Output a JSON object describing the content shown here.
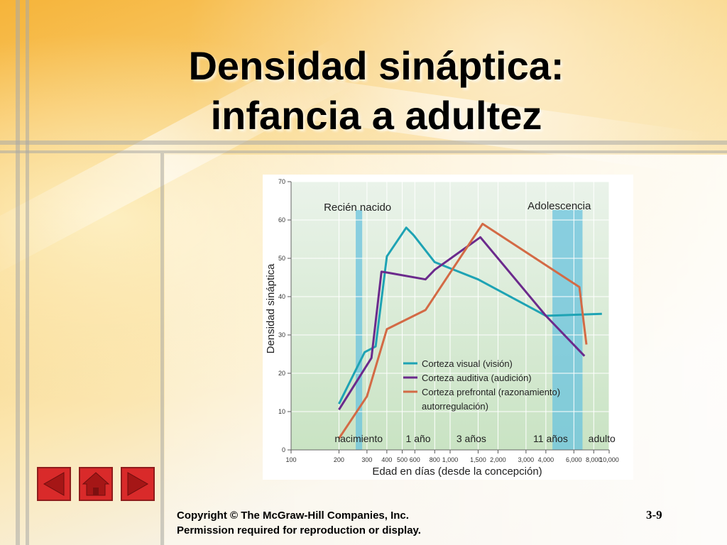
{
  "slide": {
    "title_line1": "Densidad sináptica:",
    "title_line2": "infancia a adultez",
    "copyright": "Copyright © The McGraw-Hill Companies, Inc.",
    "permission": "Permission required for reproduction or display.",
    "slide_number": "3-9"
  },
  "nav": {
    "prev_icon": "arrow-left-icon",
    "home_icon": "home-icon",
    "next_icon": "arrow-right-icon",
    "button_color": "#d92a2a"
  },
  "chart_data": {
    "type": "line",
    "title": "",
    "xlabel": "Edad en días (desde la concepción)",
    "ylabel": "Densidad sináptica",
    "xscale": "log",
    "xlim": [
      100,
      10000
    ],
    "ylim": [
      0,
      70
    ],
    "xticks": [
      "100",
      "200",
      "300",
      "400",
      "500",
      "600",
      "800",
      "1,000",
      "1,500",
      "2,000",
      "3,000",
      "4,000",
      "6,000",
      "8,000",
      "10,000"
    ],
    "yticks": [
      "0",
      "10",
      "20",
      "30",
      "40",
      "50",
      "60",
      "70"
    ],
    "grid": true,
    "legend_position": "center-right",
    "milestones": [
      {
        "label": "nacimiento",
        "x": 266
      },
      {
        "label": "1 año",
        "x": 630
      },
      {
        "label": "3 años",
        "x": 1360
      },
      {
        "label": "11 años",
        "x": 4280
      },
      {
        "label": "adulto",
        "x": 9000
      }
    ],
    "regions": [
      {
        "label": "Recién nacido",
        "x_range": [
          255,
          280
        ]
      },
      {
        "label": "Adolescencia",
        "x_range": [
          4400,
          6800
        ]
      }
    ],
    "series": [
      {
        "name": "Corteza visual (visión)",
        "color": "#1ea3b4",
        "points": [
          [
            200,
            12
          ],
          [
            290,
            25.5
          ],
          [
            340,
            27
          ],
          [
            400,
            50.5
          ],
          [
            530,
            58
          ],
          [
            590,
            56
          ],
          [
            800,
            49
          ],
          [
            1500,
            44.5
          ],
          [
            4000,
            35
          ],
          [
            9000,
            35.5
          ]
        ]
      },
      {
        "name": "Corteza auditiva (audición)",
        "color": "#6b2a8c",
        "points": [
          [
            200,
            10.5
          ],
          [
            320,
            24
          ],
          [
            370,
            46.5
          ],
          [
            400,
            46.3
          ],
          [
            700,
            44.5
          ],
          [
            800,
            47
          ],
          [
            1550,
            55.5
          ],
          [
            4000,
            35
          ],
          [
            7000,
            24.5
          ]
        ]
      },
      {
        "name": "Corteza prefrontal (razonamiento) autorregulación)",
        "color": "#d36a45",
        "points": [
          [
            200,
            3
          ],
          [
            300,
            14
          ],
          [
            400,
            31.5
          ],
          [
            700,
            36.5
          ],
          [
            1600,
            59
          ],
          [
            6500,
            42.5
          ],
          [
            7200,
            27.5
          ]
        ]
      }
    ]
  }
}
